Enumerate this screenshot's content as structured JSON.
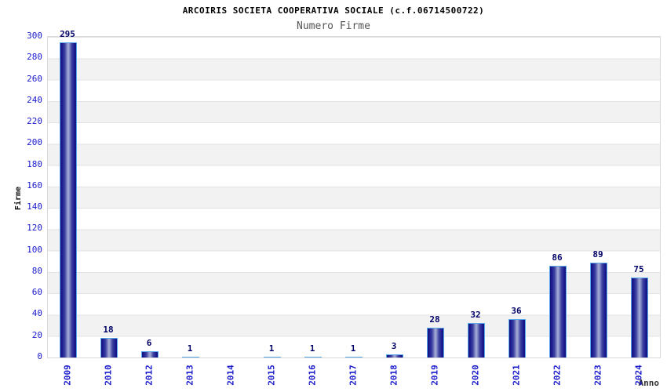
{
  "chart_data": {
    "type": "bar",
    "title": "ARCOIRIS SOCIETA COOPERATIVA SOCIALE (c.f.06714500722)",
    "subtitle": "Numero Firme",
    "xlabel": "Anno",
    "ylabel": "Firme",
    "categories": [
      "2009",
      "2010",
      "2012",
      "2013",
      "2014",
      "2015",
      "2016",
      "2017",
      "2018",
      "2019",
      "2020",
      "2021",
      "2022",
      "2023",
      "2024"
    ],
    "values": [
      295,
      18,
      6,
      1,
      0,
      1,
      1,
      1,
      3,
      28,
      32,
      36,
      86,
      89,
      75
    ],
    "ylim": [
      0,
      300
    ],
    "ytick_step": 20,
    "legend": "none",
    "grid": "horizontal-bands-alternating",
    "bar_value_labels_shown_for_zero": false,
    "colors": {
      "axis_label_blue": "#1a1acc",
      "value_label_navy": "#000066",
      "bar_edge_dark": "#12127e",
      "bar_center_light": "#a2a8d4",
      "bar_outline": "#58a8ea",
      "band_gray": "#f2f2f2",
      "gridline": "#e2e2e2",
      "plot_border": "#d9d9d9",
      "title_color": "#000000",
      "subtitle_color": "#555555"
    }
  }
}
